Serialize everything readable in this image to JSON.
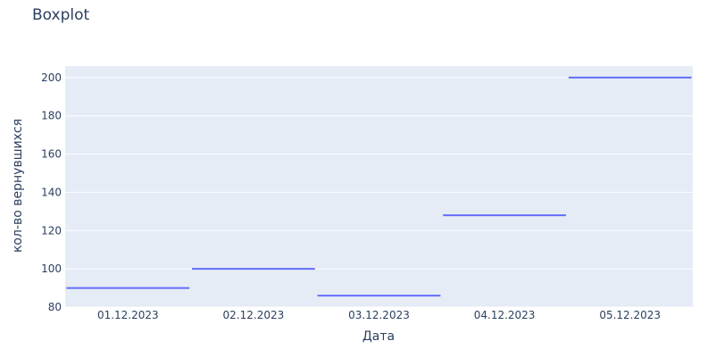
{
  "chart_data": {
    "type": "box",
    "title": "Boxplot",
    "xlabel": "Дата",
    "ylabel": "кол-во вернувшихся",
    "categories": [
      "01.12.2023",
      "02.12.2023",
      "03.12.2023",
      "04.12.2023",
      "05.12.2023"
    ],
    "values": [
      90,
      100,
      86,
      128,
      200
    ],
    "yticks": [
      80,
      100,
      120,
      140,
      160,
      180,
      200
    ],
    "ylim": [
      80,
      206
    ],
    "grid": true,
    "colors": {
      "plot_bg": "#e5ecf6",
      "grid": "#ffffff",
      "series": "#636efa",
      "text": "#2a3f5f"
    }
  }
}
